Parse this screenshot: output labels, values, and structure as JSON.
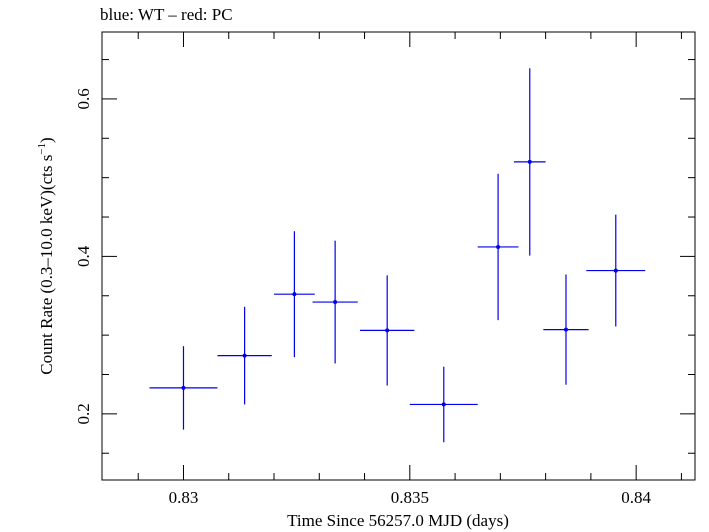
{
  "chart_data": {
    "type": "scatter",
    "title": "blue: WT – red: PC",
    "xlabel": "Time Since 56257.0 MJD (days)",
    "ylabel_main": "Count Rate (0.3–10.0 keV)(cts s",
    "ylabel_sup": "−1",
    "ylabel_end": ")",
    "xlim": [
      0.8282,
      0.8413
    ],
    "ylim": [
      0.116,
      0.685
    ],
    "x_ticks": [
      0.83,
      0.835,
      0.84
    ],
    "x_tick_labels": [
      "0.83",
      "0.835",
      "0.84"
    ],
    "y_ticks": [
      0.2,
      0.4,
      0.6
    ],
    "y_tick_labels": [
      "0.2",
      "0.4",
      "0.6"
    ],
    "grid": false,
    "series": [
      {
        "color": "#0000ee",
        "points": [
          {
            "x": 0.83,
            "xerr": 0.00075,
            "y": 0.233,
            "yerr": 0.053
          },
          {
            "x": 0.83135,
            "xerr": 0.0006,
            "y": 0.274,
            "yerr": 0.062
          },
          {
            "x": 0.83245,
            "xerr": 0.00045,
            "y": 0.352,
            "yerr": 0.08
          },
          {
            "x": 0.83335,
            "xerr": 0.0005,
            "y": 0.342,
            "yerr": 0.078
          },
          {
            "x": 0.8345,
            "xerr": 0.0006,
            "y": 0.306,
            "yerr": 0.07
          },
          {
            "x": 0.83575,
            "xerr": 0.00075,
            "y": 0.212,
            "yerr": 0.048
          },
          {
            "x": 0.83695,
            "xerr": 0.00045,
            "y": 0.412,
            "yerr": 0.093
          },
          {
            "x": 0.83765,
            "xerr": 0.00035,
            "y": 0.52,
            "yerr": 0.119
          },
          {
            "x": 0.83845,
            "xerr": 0.0005,
            "y": 0.307,
            "yerr": 0.07
          },
          {
            "x": 0.83955,
            "xerr": 0.00065,
            "y": 0.382,
            "yerr": 0.071
          }
        ]
      }
    ]
  }
}
